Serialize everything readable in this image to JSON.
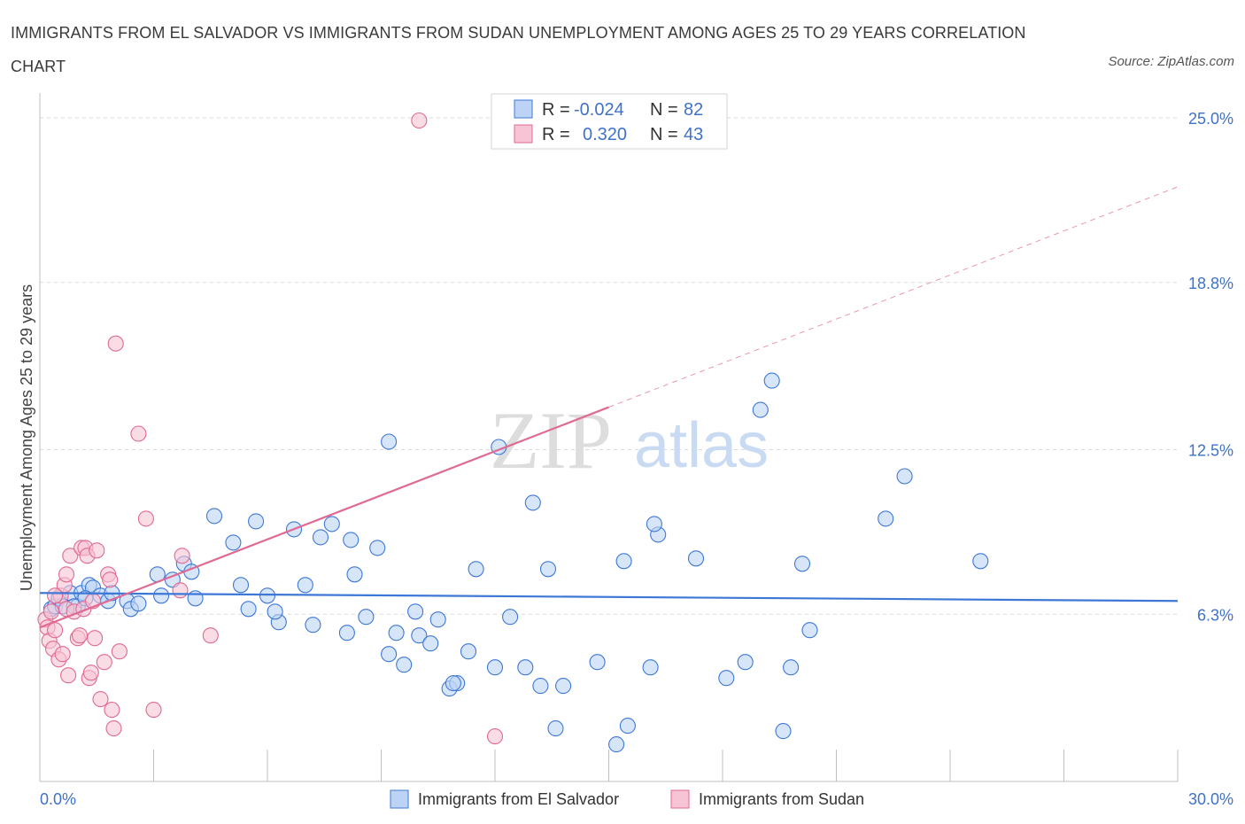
{
  "title": "IMMIGRANTS FROM EL SALVADOR VS IMMIGRANTS FROM SUDAN UNEMPLOYMENT AMONG AGES 25 TO 29 YEARS CORRELATION CHART",
  "source": "Source: ZipAtlas.com",
  "watermark": {
    "zip": "ZIP",
    "atlas": "atlas"
  },
  "colors": {
    "blue": "#3e78d6",
    "blue_fill": "#bcd3f5",
    "pink": "#e06a94",
    "pink_fill": "#f6c4d4",
    "grid": "#d9d9d9",
    "tick_text": "#3f72c8"
  },
  "legend": {
    "rows": [
      {
        "r_label": "R =",
        "r_value": "-0.024",
        "n_label": "N =",
        "n_value": "82"
      },
      {
        "r_label": "R =",
        "r_value": "0.320",
        "n_label": "N =",
        "n_value": "43"
      }
    ]
  },
  "chart_data": {
    "type": "scatter",
    "title": "IMMIGRANTS FROM EL SALVADOR VS IMMIGRANTS FROM SUDAN UNEMPLOYMENT AMONG AGES 25 TO 29 YEARS CORRELATION CHART",
    "xlabel": "",
    "ylabel": "Unemployment Among Ages 25 to 29 years",
    "xlim": [
      0,
      30
    ],
    "ylim": [
      0,
      25.5
    ],
    "x_tick_labels": [
      "0.0%",
      "30.0%"
    ],
    "y_ticks": [
      6.3,
      12.5,
      18.8,
      25.0
    ],
    "y_tick_labels": [
      "6.3%",
      "12.5%",
      "18.8%",
      "25.0%"
    ],
    "grid": true,
    "legend_position": "top-center",
    "series": [
      {
        "name": "Immigrants from El Salvador",
        "color": "#3e78d6",
        "r": -0.024,
        "n": 82,
        "trend": {
          "x": [
            0,
            30
          ],
          "y": [
            7.1,
            6.8
          ]
        },
        "points": [
          [
            0.3,
            6.5
          ],
          [
            0.4,
            6.6
          ],
          [
            0.5,
            6.9
          ],
          [
            0.6,
            6.6
          ],
          [
            0.8,
            7.1
          ],
          [
            1.0,
            6.6
          ],
          [
            1.1,
            7.1
          ],
          [
            1.3,
            7.4
          ],
          [
            1.4,
            7.3
          ],
          [
            1.6,
            7.0
          ],
          [
            1.8,
            6.8
          ],
          [
            1.9,
            7.1
          ],
          [
            2.3,
            6.8
          ],
          [
            2.4,
            6.5
          ],
          [
            3.1,
            7.8
          ],
          [
            3.2,
            7.0
          ],
          [
            3.5,
            7.6
          ],
          [
            3.8,
            8.2
          ],
          [
            4.0,
            7.9
          ],
          [
            4.6,
            10.0
          ],
          [
            4.1,
            6.9
          ],
          [
            5.1,
            9.0
          ],
          [
            5.3,
            7.4
          ],
          [
            5.7,
            9.8
          ],
          [
            6.0,
            7.0
          ],
          [
            6.3,
            6.0
          ],
          [
            6.7,
            9.5
          ],
          [
            7.0,
            7.4
          ],
          [
            7.4,
            9.2
          ],
          [
            7.7,
            9.7
          ],
          [
            7.2,
            5.9
          ],
          [
            8.1,
            5.6
          ],
          [
            8.3,
            7.8
          ],
          [
            8.6,
            6.2
          ],
          [
            8.2,
            9.1
          ],
          [
            8.9,
            8.8
          ],
          [
            9.2,
            4.8
          ],
          [
            9.4,
            5.6
          ],
          [
            9.6,
            4.4
          ],
          [
            10.0,
            5.5
          ],
          [
            9.9,
            6.4
          ],
          [
            10.3,
            5.2
          ],
          [
            10.5,
            6.1
          ],
          [
            10.8,
            3.5
          ],
          [
            11.0,
            3.7
          ],
          [
            11.3,
            4.9
          ],
          [
            11.5,
            8.0
          ],
          [
            12.0,
            4.3
          ],
          [
            12.1,
            12.6
          ],
          [
            12.4,
            6.2
          ],
          [
            12.8,
            4.3
          ],
          [
            13.0,
            10.5
          ],
          [
            13.2,
            3.6
          ],
          [
            13.4,
            8.0
          ],
          [
            13.6,
            2.0
          ],
          [
            13.8,
            3.6
          ],
          [
            14.7,
            4.5
          ],
          [
            15.2,
            1.4
          ],
          [
            15.4,
            8.3
          ],
          [
            15.5,
            2.1
          ],
          [
            16.1,
            4.3
          ],
          [
            16.3,
            9.3
          ],
          [
            16.2,
            9.7
          ],
          [
            17.3,
            8.4
          ],
          [
            18.1,
            3.9
          ],
          [
            18.6,
            4.5
          ],
          [
            19.0,
            14.0
          ],
          [
            19.3,
            15.1
          ],
          [
            19.6,
            1.9
          ],
          [
            19.8,
            4.3
          ],
          [
            20.1,
            8.2
          ],
          [
            20.3,
            5.7
          ],
          [
            22.3,
            9.9
          ],
          [
            22.8,
            11.5
          ],
          [
            24.8,
            8.3
          ],
          [
            9.2,
            12.8
          ],
          [
            0.9,
            6.6
          ],
          [
            2.6,
            6.7
          ],
          [
            5.5,
            6.5
          ],
          [
            6.2,
            6.4
          ],
          [
            1.2,
            6.9
          ],
          [
            10.9,
            3.7
          ]
        ]
      },
      {
        "name": "Immigrants from Sudan",
        "color": "#e06a94",
        "r": 0.32,
        "n": 43,
        "trend": {
          "x": [
            0,
            15
          ],
          "y": [
            5.8,
            14.1
          ]
        },
        "trend_extension": {
          "x": [
            15,
            30
          ],
          "y": [
            14.1,
            22.4
          ]
        },
        "points": [
          [
            0.15,
            6.1
          ],
          [
            0.2,
            5.8
          ],
          [
            0.25,
            5.3
          ],
          [
            0.3,
            6.4
          ],
          [
            0.35,
            5.0
          ],
          [
            0.4,
            5.7
          ],
          [
            0.5,
            4.6
          ],
          [
            0.55,
            7.0
          ],
          [
            0.6,
            4.8
          ],
          [
            0.65,
            7.4
          ],
          [
            0.7,
            6.5
          ],
          [
            0.7,
            7.8
          ],
          [
            0.75,
            4.0
          ],
          [
            0.8,
            8.5
          ],
          [
            0.9,
            6.4
          ],
          [
            1.0,
            5.4
          ],
          [
            1.05,
            5.5
          ],
          [
            1.1,
            8.8
          ],
          [
            1.15,
            6.5
          ],
          [
            1.2,
            8.8
          ],
          [
            1.25,
            8.5
          ],
          [
            1.3,
            3.9
          ],
          [
            1.35,
            4.1
          ],
          [
            1.45,
            5.4
          ],
          [
            1.4,
            6.8
          ],
          [
            1.5,
            8.7
          ],
          [
            1.6,
            3.1
          ],
          [
            1.7,
            4.5
          ],
          [
            1.8,
            7.8
          ],
          [
            1.85,
            7.6
          ],
          [
            1.9,
            2.7
          ],
          [
            1.95,
            2.0
          ],
          [
            2.0,
            16.5
          ],
          [
            2.1,
            4.9
          ],
          [
            2.6,
            13.1
          ],
          [
            3.0,
            2.7
          ],
          [
            2.8,
            9.9
          ],
          [
            3.7,
            7.2
          ],
          [
            3.75,
            8.5
          ],
          [
            4.5,
            5.5
          ],
          [
            10.0,
            24.9
          ],
          [
            12.0,
            1.7
          ],
          [
            0.4,
            7.0
          ]
        ]
      }
    ]
  },
  "bottom_legend": [
    "Immigrants from El Salvador",
    "Immigrants from Sudan"
  ]
}
